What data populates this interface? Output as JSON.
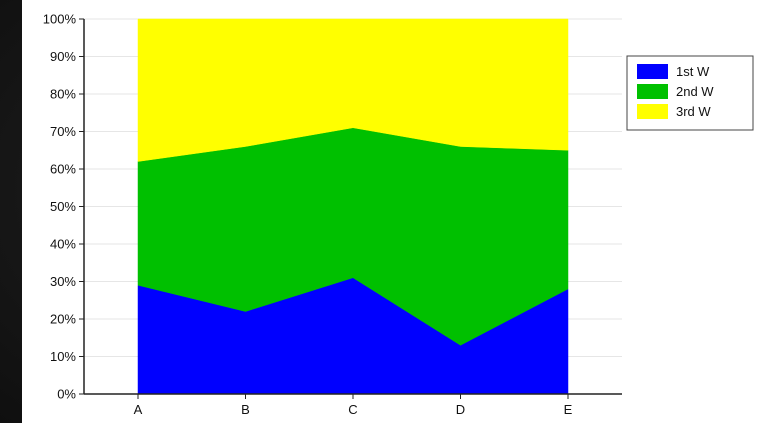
{
  "chart_data": {
    "type": "area",
    "stacked": true,
    "percent": true,
    "categories": [
      "A",
      "B",
      "C",
      "D",
      "E"
    ],
    "series": [
      {
        "name": "1st W",
        "color": "#0000ff",
        "values": [
          29,
          22,
          31,
          13,
          28
        ]
      },
      {
        "name": "2nd W",
        "color": "#00c000",
        "values": [
          33,
          44,
          40,
          53,
          37
        ]
      },
      {
        "name": "3rd W",
        "color": "#ffff00",
        "values": [
          38,
          34,
          29,
          34,
          35
        ]
      }
    ],
    "y_ticks": [
      "0%",
      "10%",
      "20%",
      "30%",
      "40%",
      "50%",
      "60%",
      "70%",
      "80%",
      "90%",
      "100%"
    ],
    "ylim": [
      0,
      100
    ],
    "grid": true,
    "legend_position": "top-right",
    "title": "",
    "xlabel": "",
    "ylabel": ""
  }
}
